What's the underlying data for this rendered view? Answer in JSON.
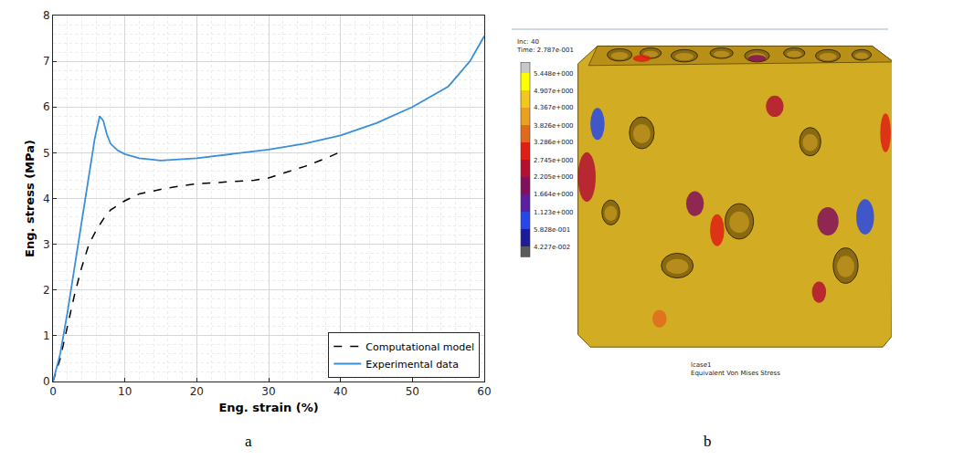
{
  "chart_data": {
    "type": "line",
    "x_label": "Eng. strain (%)",
    "y_label": "Eng. stress (MPa)",
    "xlim": [
      0,
      60
    ],
    "xticks": [
      0,
      10,
      20,
      30,
      40,
      50,
      60
    ],
    "ylim": [
      0,
      8
    ],
    "yticks": [
      0,
      1,
      2,
      3,
      4,
      5,
      6,
      7,
      8
    ],
    "grid": true,
    "legend": "lower right",
    "series": [
      {
        "name": "Computational model",
        "color": "#000000",
        "line_style": "dashed",
        "x": [
          0,
          1,
          2,
          3,
          4,
          5,
          6,
          7,
          8,
          10,
          12,
          15,
          18,
          20,
          25,
          28,
          30,
          32,
          35,
          38,
          40
        ],
        "values": [
          0,
          0.5,
          1.2,
          1.9,
          2.5,
          3.0,
          3.3,
          3.55,
          3.75,
          3.95,
          4.1,
          4.2,
          4.28,
          4.32,
          4.37,
          4.4,
          4.45,
          4.55,
          4.7,
          4.88,
          5.02
        ]
      },
      {
        "name": "Experimental data",
        "color": "#3a8fd8",
        "line_style": "solid",
        "x": [
          0,
          1,
          2,
          3,
          4,
          5,
          5.8,
          6.5,
          7,
          7.5,
          8,
          9,
          10,
          12,
          15,
          20,
          25,
          30,
          35,
          40,
          45,
          50,
          55,
          58,
          60
        ],
        "values": [
          0,
          0.6,
          1.5,
          2.5,
          3.5,
          4.5,
          5.3,
          5.8,
          5.7,
          5.4,
          5.2,
          5.05,
          4.97,
          4.88,
          4.83,
          4.88,
          4.97,
          5.07,
          5.2,
          5.38,
          5.65,
          6.0,
          6.45,
          7.0,
          7.55
        ]
      }
    ]
  },
  "panel_labels": [
    "a",
    "b"
  ],
  "render": {
    "header": [
      "Inc: 40",
      "Time: 2.787e-001"
    ],
    "colorbar": {
      "ticks": [
        {
          "value": 5.448,
          "label": "5.448e+000"
        },
        {
          "value": 4.907,
          "label": "4.907e+000"
        },
        {
          "value": 4.367,
          "label": "4.367e+000"
        },
        {
          "value": 3.826,
          "label": "3.826e+000"
        },
        {
          "value": 3.286,
          "label": "3.286e+000"
        },
        {
          "value": 2.745,
          "label": "2.745e+000"
        },
        {
          "value": 2.205,
          "label": "2.205e+000"
        },
        {
          "value": 1.664,
          "label": "1.664e+000"
        },
        {
          "value": 1.123,
          "label": "1.123e+000"
        },
        {
          "value": 0.5828,
          "label": "5.828e-001"
        },
        {
          "value": 0.04227,
          "label": "4.227e-002"
        }
      ],
      "colors": [
        "#c8c8c8",
        "#ffff00",
        "#f2c81e",
        "#eaa020",
        "#e06a1c",
        "#e01e14",
        "#b41032",
        "#82105a",
        "#5a1ea0",
        "#2846e6",
        "#1c1c96",
        "#5a5a5a"
      ]
    },
    "footer": [
      "lcase1",
      "Equivalent Von Mises Stress"
    ]
  }
}
